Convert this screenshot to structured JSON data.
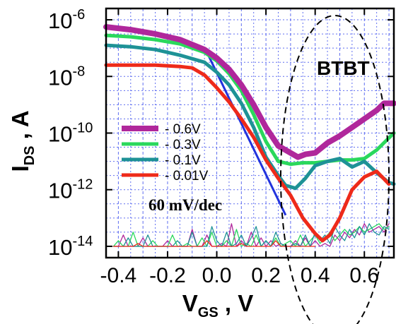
{
  "chart_data": {
    "type": "line",
    "xlabel": {
      "main": "V",
      "sub": "GS",
      "unit": " , V"
    },
    "ylabel": {
      "main": "I",
      "sub": "DS",
      "unit": " , A"
    },
    "xlim": [
      -0.45,
      0.72
    ],
    "ylim_log10": [
      -14.4,
      -5.6
    ],
    "y_scale": "log",
    "grid": true,
    "x_ticks": [
      {
        "value": -0.4,
        "label": "-0.4"
      },
      {
        "value": -0.2,
        "label": "-0.2"
      },
      {
        "value": 0.0,
        "label": "0.0"
      },
      {
        "value": 0.2,
        "label": "0.2"
      },
      {
        "value": 0.4,
        "label": "0.4"
      },
      {
        "value": 0.6,
        "label": "0.6"
      }
    ],
    "y_ticks": [
      {
        "exp": -6,
        "base": "10",
        "power": "-6"
      },
      {
        "exp": -8,
        "base": "10",
        "power": "-8"
      },
      {
        "exp": -10,
        "base": "10",
        "power": "-10"
      },
      {
        "exp": -12,
        "base": "10",
        "power": "-12"
      },
      {
        "exp": -14,
        "base": "10",
        "power": "-14"
      }
    ],
    "legend_position": "middle-left",
    "annotations": {
      "btbt": "BTBT",
      "slope": "60 mV/dec"
    },
    "slope_line": {
      "color": "#2233dd",
      "x": [
        -0.04,
        0.28
      ],
      "log10_y": [
        -7.15,
        -12.9
      ]
    },
    "btbt_ellipse": {
      "center_x": 0.48,
      "center_log10_y": -11.55,
      "half_width_x": 0.22,
      "half_height_log10": 5.7
    },
    "series": [
      {
        "name": "- 0.6V",
        "color": "#b0279b",
        "width": 8,
        "x": [
          -0.45,
          -0.35,
          -0.25,
          -0.15,
          -0.05,
          0.0,
          0.05,
          0.1,
          0.15,
          0.2,
          0.25,
          0.3,
          0.33,
          0.36,
          0.4,
          0.45,
          0.5,
          0.55,
          0.6,
          0.65,
          0.68,
          0.72
        ],
        "log10_y": [
          -6.25,
          -6.35,
          -6.5,
          -6.7,
          -7.05,
          -7.35,
          -7.75,
          -8.3,
          -9.0,
          -9.8,
          -10.45,
          -10.7,
          -10.85,
          -10.75,
          -10.7,
          -10.35,
          -10.1,
          -9.8,
          -9.5,
          -9.2,
          -8.95,
          -8.95
        ]
      },
      {
        "name": "- 0.3V",
        "color": "#2ad85c",
        "width": 5,
        "x": [
          -0.45,
          -0.35,
          -0.25,
          -0.15,
          -0.05,
          0.0,
          0.05,
          0.1,
          0.15,
          0.2,
          0.25,
          0.3,
          0.35,
          0.4,
          0.45,
          0.5,
          0.55,
          0.6,
          0.65,
          0.72
        ],
        "log10_y": [
          -6.55,
          -6.6,
          -6.7,
          -6.85,
          -7.15,
          -7.45,
          -7.9,
          -8.5,
          -9.35,
          -10.3,
          -11.0,
          -11.1,
          -11.05,
          -11.05,
          -11.0,
          -10.95,
          -10.95,
          -10.9,
          -10.6,
          -10.0
        ]
      },
      {
        "name": "- 0.1V",
        "color": "#1e9296",
        "width": 5,
        "x": [
          -0.45,
          -0.35,
          -0.25,
          -0.15,
          -0.05,
          0.0,
          0.05,
          0.1,
          0.15,
          0.2,
          0.25,
          0.28,
          0.32,
          0.36,
          0.4,
          0.45,
          0.5,
          0.55,
          0.6,
          0.65,
          0.7,
          0.72
        ],
        "log10_y": [
          -6.9,
          -6.95,
          -7.05,
          -7.25,
          -7.5,
          -7.85,
          -8.3,
          -8.95,
          -9.8,
          -10.85,
          -11.5,
          -11.85,
          -11.95,
          -11.6,
          -11.15,
          -11.0,
          -10.9,
          -11.2,
          -11.0,
          -11.4,
          -11.75,
          -11.8
        ]
      },
      {
        "name": "- 0.01V",
        "color": "#ee2a1a",
        "width": 5,
        "x": [
          -0.45,
          -0.35,
          -0.25,
          -0.15,
          -0.1,
          -0.05,
          0.0,
          0.05,
          0.1,
          0.15,
          0.2,
          0.25,
          0.3,
          0.35,
          0.4,
          0.43,
          0.46,
          0.5,
          0.55,
          0.6,
          0.65,
          0.7
        ],
        "log10_y": [
          -7.6,
          -7.6,
          -7.6,
          -7.65,
          -7.7,
          -7.95,
          -8.4,
          -8.9,
          -9.5,
          -10.15,
          -10.95,
          -11.6,
          -12.2,
          -13.0,
          -13.55,
          -13.8,
          -13.6,
          -13.0,
          -12.0,
          -11.55,
          -11.35,
          -11.8
        ]
      },
      {
        "name": "",
        "color": "#b0279b",
        "width": 1.3,
        "x": [
          -0.42,
          -0.4,
          -0.38,
          -0.36,
          -0.34,
          -0.32,
          -0.3,
          -0.28,
          -0.26,
          -0.24,
          -0.22,
          -0.2,
          -0.18,
          -0.16,
          -0.14,
          -0.12,
          -0.1,
          -0.08,
          -0.06,
          -0.04,
          -0.02,
          0.0,
          0.02,
          0.04,
          0.06,
          0.08,
          0.1,
          0.12,
          0.14,
          0.16,
          0.18,
          0.2,
          0.22,
          0.24,
          0.26,
          0.28,
          0.3,
          0.32,
          0.34,
          0.36,
          0.38,
          0.4,
          0.42,
          0.44,
          0.46,
          0.48,
          0.5,
          0.52,
          0.54,
          0.56,
          0.58,
          0.6,
          0.62,
          0.64,
          0.66,
          0.68,
          0.7
        ],
        "log10_y": [
          -14.0,
          -14.0,
          -13.6,
          -14.0,
          -14.0,
          -14.0,
          -13.7,
          -14.0,
          -14.0,
          -14.0,
          -14.0,
          -13.8,
          -14.0,
          -14.0,
          -14.0,
          -14.0,
          -13.4,
          -14.0,
          -14.0,
          -13.6,
          -14.0,
          -14.0,
          -13.9,
          -14.0,
          -13.2,
          -14.0,
          -13.8,
          -14.0,
          -13.5,
          -14.0,
          -13.7,
          -14.0,
          -13.8,
          -14.0,
          -13.9,
          -14.0,
          -14.0,
          -13.8,
          -14.0,
          -13.7,
          -14.0,
          -13.8,
          -14.0,
          -13.9,
          -14.0,
          -13.6,
          -13.8,
          -13.5,
          -13.7,
          -13.4,
          -13.6,
          -13.2,
          -13.5,
          -13.4,
          -13.3,
          -13.5,
          -13.2
        ]
      },
      {
        "name": "",
        "color": "#2ad85c",
        "width": 1.3,
        "x": [
          -0.42,
          -0.4,
          -0.38,
          -0.36,
          -0.34,
          -0.32,
          -0.3,
          -0.28,
          -0.26,
          -0.24,
          -0.22,
          -0.2,
          -0.18,
          -0.16,
          -0.14,
          -0.12,
          -0.1,
          -0.08,
          -0.06,
          -0.04,
          -0.02,
          0.0,
          0.02,
          0.04,
          0.06,
          0.08,
          0.1,
          0.12,
          0.14,
          0.16,
          0.18,
          0.2,
          0.22,
          0.24,
          0.26,
          0.28,
          0.3,
          0.32,
          0.34,
          0.36,
          0.38,
          0.4,
          0.42,
          0.44,
          0.46,
          0.48,
          0.5,
          0.52,
          0.54,
          0.56,
          0.58,
          0.6,
          0.62,
          0.64,
          0.66,
          0.68,
          0.7
        ],
        "log10_y": [
          -14.0,
          -13.8,
          -14.0,
          -14.0,
          -13.5,
          -14.0,
          -14.0,
          -14.0,
          -13.8,
          -14.0,
          -14.0,
          -14.0,
          -13.6,
          -14.0,
          -14.0,
          -13.9,
          -14.0,
          -14.0,
          -13.7,
          -14.0,
          -13.5,
          -14.0,
          -14.0,
          -13.8,
          -14.0,
          -13.4,
          -14.0,
          -13.9,
          -14.0,
          -13.6,
          -14.0,
          -13.8,
          -14.0,
          -13.7,
          -14.0,
          -13.9,
          -13.8,
          -14.0,
          -13.6,
          -14.0,
          -13.8,
          -13.6,
          -13.9,
          -13.7,
          -13.5,
          -13.8,
          -13.6,
          -13.4,
          -13.6,
          -13.5,
          -13.3,
          -13.5,
          -13.4,
          -13.3,
          -13.2,
          -13.4,
          -13.3
        ]
      },
      {
        "name": "",
        "color": "#1e9296",
        "width": 1.3,
        "x": [
          -0.42,
          -0.4,
          -0.38,
          -0.36,
          -0.34,
          -0.32,
          -0.3,
          -0.28,
          -0.26,
          -0.24,
          -0.22,
          -0.2,
          -0.18,
          -0.16,
          -0.14,
          -0.12,
          -0.1,
          -0.08,
          -0.06,
          -0.04,
          -0.02,
          0.0,
          0.02,
          0.04,
          0.06,
          0.08,
          0.1,
          0.12,
          0.14,
          0.16,
          0.18,
          0.2,
          0.22,
          0.24,
          0.26,
          0.28,
          0.3,
          0.32,
          0.34,
          0.36,
          0.38,
          0.4,
          0.42,
          0.44,
          0.46,
          0.48,
          0.5,
          0.52,
          0.54,
          0.56,
          0.58,
          0.6,
          0.62,
          0.64,
          0.66,
          0.68,
          0.7
        ],
        "log10_y": [
          -14.0,
          -14.0,
          -14.0,
          -13.7,
          -14.0,
          -14.0,
          -14.0,
          -13.6,
          -14.0,
          -14.0,
          -14.0,
          -14.0,
          -14.0,
          -13.8,
          -14.0,
          -14.0,
          -13.5,
          -14.0,
          -14.0,
          -14.0,
          -13.3,
          -13.8,
          -14.0,
          -13.5,
          -14.0,
          -13.9,
          -13.6,
          -14.0,
          -13.7,
          -13.3,
          -14.0,
          -13.8,
          -14.0,
          -13.5,
          -13.9,
          -14.0,
          -14.0,
          -13.9,
          -14.0,
          -13.6,
          -14.0,
          -13.5,
          -13.8,
          -13.6,
          -13.9,
          -13.3,
          -13.6,
          -13.8,
          -13.4,
          -13.7,
          -13.3,
          -13.6,
          -13.2,
          -13.5,
          -13.6,
          -13.3,
          -13.4
        ]
      },
      {
        "name": "",
        "color": "#ee2a1a",
        "width": 1.3,
        "x": [
          -0.42,
          -0.4,
          -0.38,
          -0.36,
          -0.34,
          -0.32,
          -0.3,
          -0.28,
          -0.26,
          -0.24,
          -0.22,
          -0.2,
          -0.18,
          -0.16,
          -0.14,
          -0.12,
          -0.1,
          -0.08,
          -0.06,
          -0.04,
          -0.02,
          0.0,
          0.02,
          0.04,
          0.06,
          0.08,
          0.1,
          0.12,
          0.14,
          0.16,
          0.18,
          0.2,
          0.22,
          0.24,
          0.26,
          0.28,
          0.3,
          0.32,
          0.34,
          0.36,
          0.38,
          0.4
        ],
        "log10_y": [
          -14.0,
          -14.0,
          -14.0,
          -14.0,
          -14.0,
          -13.9,
          -14.0,
          -14.0,
          -14.0,
          -14.0,
          -14.0,
          -14.0,
          -14.0,
          -14.0,
          -14.0,
          -14.0,
          -14.0,
          -14.0,
          -14.0,
          -13.8,
          -14.0,
          -14.0,
          -14.0,
          -14.0,
          -14.0,
          -14.0,
          -13.9,
          -14.0,
          -14.0,
          -14.0,
          -14.0,
          -14.0,
          -14.0,
          -13.8,
          -14.0,
          -14.0,
          -14.0,
          -14.0,
          -14.0,
          -14.0,
          -14.0,
          -14.0
        ]
      }
    ]
  }
}
